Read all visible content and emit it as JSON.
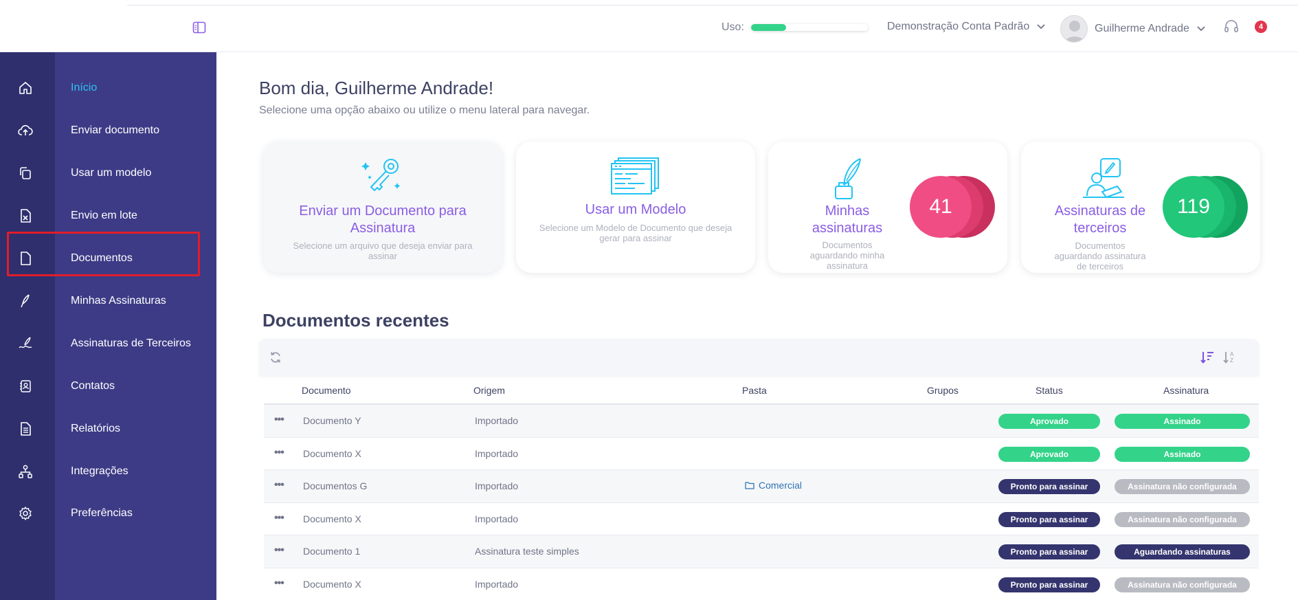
{
  "topbar": {
    "usage_label": "Uso:",
    "usage_percent": 30,
    "account_label": "Demonstração Conta Padrão",
    "user_name": "Guilherme Andrade",
    "notification_count": "4"
  },
  "sidebar": {
    "items": [
      {
        "label": "Início",
        "icon": "home-icon",
        "active": true
      },
      {
        "label": "Enviar documento",
        "icon": "cloud-upload-icon"
      },
      {
        "label": "Usar um modelo",
        "icon": "template-icon"
      },
      {
        "label": "Envio em lote",
        "icon": "spreadsheet-icon"
      },
      {
        "label": "Documentos",
        "icon": "document-icon"
      },
      {
        "label": "Minhas Assinaturas",
        "icon": "pen-icon"
      },
      {
        "label": "Assinaturas de Terceiros",
        "icon": "third-party-signature-icon"
      },
      {
        "label": "Contatos",
        "icon": "contacts-icon"
      },
      {
        "label": "Relatórios",
        "icon": "report-icon"
      },
      {
        "label": "Integrações",
        "icon": "integrations-icon"
      },
      {
        "label": "Preferências",
        "icon": "gear-icon"
      }
    ]
  },
  "main": {
    "greeting": "Bom dia, Guilherme Andrade!",
    "subtitle": "Selecione uma opção abaixo ou utilize o menu lateral para navegar.",
    "cards": [
      {
        "title": "Enviar um Documento para Assinatura",
        "desc": "Selecione um arquivo que deseja enviar para assinar",
        "icon": "key-icon"
      },
      {
        "title": "Usar um Modelo",
        "desc": "Selecione um Modelo de Documento que deseja gerar para assinar",
        "icon": "template-stack-icon"
      },
      {
        "title": "Minhas assinaturas",
        "desc": "Documentos aguardando minha assinatura",
        "count": "41",
        "icon": "quill-icon"
      },
      {
        "title": "Assinaturas de terceiros",
        "desc": "Documentos aguardando assinatura de terceiros",
        "count": "119",
        "icon": "person-signing-icon"
      }
    ],
    "recent_title": "Documentos recentes"
  },
  "table": {
    "headers": {
      "document": "Documento",
      "origin": "Origem",
      "folder": "Pasta",
      "groups": "Grupos",
      "status": "Status",
      "signature": "Assinatura"
    },
    "rows": [
      {
        "document": "Documento Y",
        "origin": "Importado",
        "folder": "",
        "status": "Aprovado",
        "signature": "Assinado"
      },
      {
        "document": "Documento X",
        "origin": "Importado",
        "folder": "",
        "status": "Aprovado",
        "signature": "Assinado"
      },
      {
        "document": "Documentos G",
        "origin": "Importado",
        "folder": "Comercial",
        "status": "Pronto para assinar",
        "signature": "Assinatura não configurada"
      },
      {
        "document": "Documento X",
        "origin": "Importado",
        "folder": "",
        "status": "Pronto para assinar",
        "signature": "Assinatura não configurada"
      },
      {
        "document": "Documento 1",
        "origin": "Assinatura teste simples",
        "folder": "",
        "status": "Pronto para assinar",
        "signature": "Aguardando assinaturas"
      },
      {
        "document": "Documento X",
        "origin": "Importado",
        "folder": "",
        "status": "Pronto para assinar",
        "signature": "Assinatura não configurada"
      }
    ]
  },
  "colors": {
    "sidebar_rail": "#2f2f6e",
    "sidebar_panel": "#3d3b86",
    "active_nav": "#2fc2f0",
    "card_title": "#8a5de3",
    "pink_bubble": "#f04d85",
    "green_bubble": "#22c77a",
    "badge_green": "#33d389",
    "badge_navy": "#34346e",
    "badge_gray": "#b9bbc2",
    "highlight_red": "#e11d2a"
  }
}
